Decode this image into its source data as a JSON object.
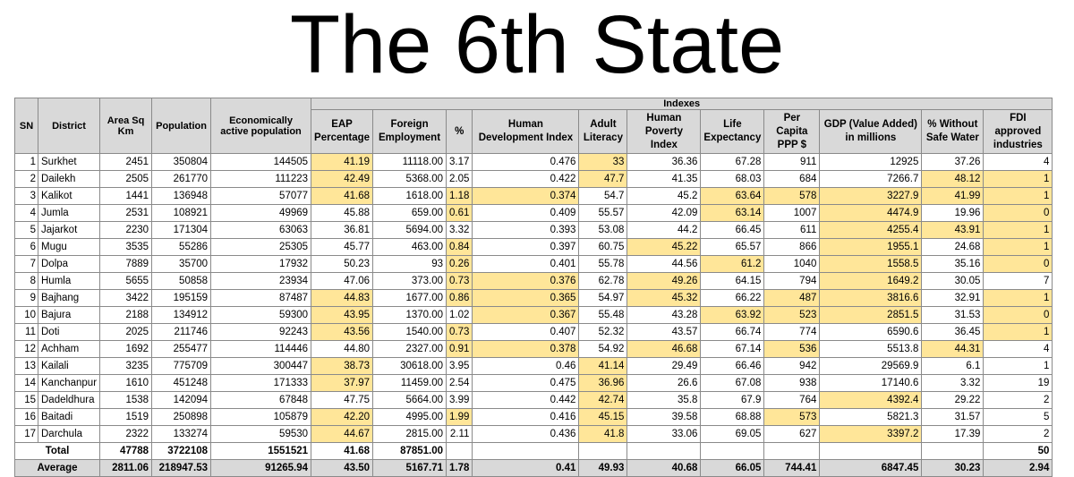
{
  "title": "The 6th State",
  "table": {
    "group_header": "Indexes",
    "headers": [
      "SN",
      "District",
      "Area Sq Km",
      "Population",
      "Economically active population",
      "EAP Percentage",
      "Foreign Employment",
      "%",
      "Human Development Index",
      "Adult Literacy",
      "Human Poverty Index",
      "Life Expectancy",
      "Per Capita PPP $",
      "GDP (Value Added) in millions",
      "% Without Safe Water",
      "FDI approved industries"
    ],
    "rows": [
      {
        "cells": [
          "1",
          "Surkhet",
          "2451",
          "350804",
          "144505",
          "41.19",
          "11118.00",
          "3.17",
          "0.476",
          "33",
          "36.36",
          "67.28",
          "911",
          "12925",
          "37.26",
          "4"
        ],
        "hl": [
          5,
          9
        ]
      },
      {
        "cells": [
          "2",
          "Dailekh",
          "2505",
          "261770",
          "111223",
          "42.49",
          "5368.00",
          "2.05",
          "0.422",
          "47.7",
          "41.35",
          "68.03",
          "684",
          "7266.7",
          "48.12",
          "1"
        ],
        "hl": [
          5,
          9,
          14,
          15
        ]
      },
      {
        "cells": [
          "3",
          "Kalikot",
          "1441",
          "136948",
          "57077",
          "41.68",
          "1618.00",
          "1.18",
          "0.374",
          "54.7",
          "45.2",
          "63.64",
          "578",
          "3227.9",
          "41.99",
          "1"
        ],
        "hl": [
          5,
          7,
          8,
          11,
          12,
          13,
          14,
          15
        ]
      },
      {
        "cells": [
          "4",
          "Jumla",
          "2531",
          "108921",
          "49969",
          "45.88",
          "659.00",
          "0.61",
          "0.409",
          "55.57",
          "42.09",
          "63.14",
          "1007",
          "4474.9",
          "19.96",
          "0"
        ],
        "hl": [
          7,
          11,
          13,
          15
        ]
      },
      {
        "cells": [
          "5",
          "Jajarkot",
          "2230",
          "171304",
          "63063",
          "36.81",
          "5694.00",
          "3.32",
          "0.393",
          "53.08",
          "44.2",
          "66.45",
          "611",
          "4255.4",
          "43.91",
          "1"
        ],
        "hl": [
          13,
          14,
          15
        ]
      },
      {
        "cells": [
          "6",
          "Mugu",
          "3535",
          "55286",
          "25305",
          "45.77",
          "463.00",
          "0.84",
          "0.397",
          "60.75",
          "45.22",
          "65.57",
          "866",
          "1955.1",
          "24.68",
          "1"
        ],
        "hl": [
          7,
          10,
          13,
          15
        ]
      },
      {
        "cells": [
          "7",
          "Dolpa",
          "7889",
          "35700",
          "17932",
          "50.23",
          "93",
          "0.26",
          "0.401",
          "55.78",
          "44.56",
          "61.2",
          "1040",
          "1558.5",
          "35.16",
          "0"
        ],
        "hl": [
          7,
          11,
          13,
          15
        ]
      },
      {
        "cells": [
          "8",
          "Humla",
          "5655",
          "50858",
          "23934",
          "47.06",
          "373.00",
          "0.73",
          "0.376",
          "62.78",
          "49.26",
          "64.15",
          "794",
          "1649.2",
          "30.05",
          "7"
        ],
        "hl": [
          7,
          8,
          10,
          13
        ]
      },
      {
        "cells": [
          "9",
          "Bajhang",
          "3422",
          "195159",
          "87487",
          "44.83",
          "1677.00",
          "0.86",
          "0.365",
          "54.97",
          "45.32",
          "66.22",
          "487",
          "3816.6",
          "32.91",
          "1"
        ],
        "hl": [
          5,
          7,
          8,
          10,
          12,
          13,
          15
        ]
      },
      {
        "cells": [
          "10",
          "Bajura",
          "2188",
          "134912",
          "59300",
          "43.95",
          "1370.00",
          "1.02",
          "0.367",
          "55.48",
          "43.28",
          "63.92",
          "523",
          "2851.5",
          "31.53",
          "0"
        ],
        "hl": [
          5,
          8,
          11,
          12,
          13,
          15
        ]
      },
      {
        "cells": [
          "11",
          "Doti",
          "2025",
          "211746",
          "92243",
          "43.56",
          "1540.00",
          "0.73",
          "0.407",
          "52.32",
          "43.57",
          "66.74",
          "774",
          "6590.6",
          "36.45",
          "1"
        ],
        "hl": [
          5,
          7,
          15
        ]
      },
      {
        "cells": [
          "12",
          "Achham",
          "1692",
          "255477",
          "114446",
          "44.80",
          "2327.00",
          "0.91",
          "0.378",
          "54.92",
          "46.68",
          "67.14",
          "536",
          "5513.8",
          "44.31",
          "4"
        ],
        "hl": [
          7,
          8,
          10,
          12,
          14
        ]
      },
      {
        "cells": [
          "13",
          "Kailali",
          "3235",
          "775709",
          "300447",
          "38.73",
          "30618.00",
          "3.95",
          "0.46",
          "41.14",
          "29.49",
          "66.46",
          "942",
          "29569.9",
          "6.1",
          "1"
        ],
        "hl": [
          5,
          9
        ]
      },
      {
        "cells": [
          "14",
          "Kanchanpur",
          "1610",
          "451248",
          "171333",
          "37.97",
          "11459.00",
          "2.54",
          "0.475",
          "36.96",
          "26.6",
          "67.08",
          "938",
          "17140.6",
          "3.32",
          "19"
        ],
        "hl": [
          5,
          9
        ]
      },
      {
        "cells": [
          "15",
          "Dadeldhura",
          "1538",
          "142094",
          "67848",
          "47.75",
          "5664.00",
          "3.99",
          "0.442",
          "42.74",
          "35.8",
          "67.9",
          "764",
          "4392.4",
          "29.22",
          "2"
        ],
        "hl": [
          9,
          13
        ]
      },
      {
        "cells": [
          "16",
          "Baitadi",
          "1519",
          "250898",
          "105879",
          "42.20",
          "4995.00",
          "1.99",
          "0.416",
          "45.15",
          "39.58",
          "68.88",
          "573",
          "5821.3",
          "31.57",
          "5"
        ],
        "hl": [
          5,
          7,
          9,
          12
        ]
      },
      {
        "cells": [
          "17",
          "Darchula",
          "2322",
          "133274",
          "59530",
          "44.67",
          "2815.00",
          "2.11",
          "0.436",
          "41.8",
          "33.06",
          "69.05",
          "627",
          "3397.2",
          "17.39",
          "2"
        ],
        "hl": [
          5,
          9,
          13
        ]
      }
    ],
    "total": {
      "label": "Total",
      "cells": [
        "47788",
        "3722108",
        "1551521",
        "41.68",
        "87851.00",
        "",
        "",
        "",
        "",
        "",
        "",
        "",
        "",
        "50"
      ]
    },
    "average": {
      "label": "Average",
      "cells": [
        "2811.06",
        "218947.53",
        "91265.94",
        "43.50",
        "5167.71",
        "1.78",
        "0.41",
        "49.93",
        "40.68",
        "66.05",
        "744.41",
        "6847.45",
        "30.23",
        "2.94"
      ]
    },
    "colors": {
      "header_bg": "#d9d9d9",
      "highlight": "#ffe699",
      "border": "#8a8a8a"
    }
  }
}
